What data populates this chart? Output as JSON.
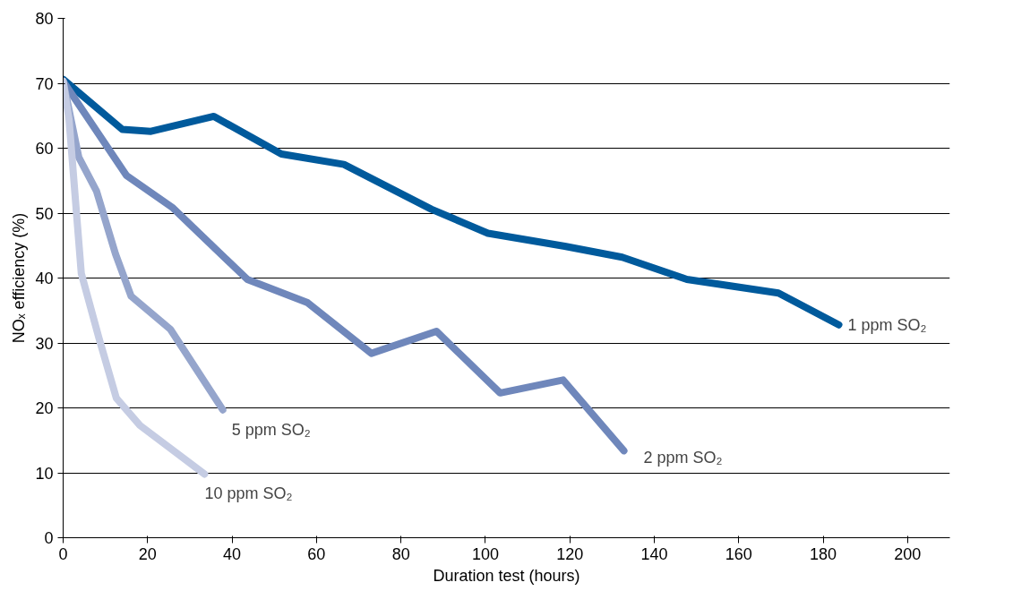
{
  "chart_data": {
    "type": "line",
    "xlabel": "Duration test (hours)",
    "ylabel": "NOₓ efficiency (%)",
    "xlim": [
      0,
      210
    ],
    "xticks": [
      0,
      20,
      40,
      60,
      80,
      100,
      120,
      140,
      160,
      180,
      200
    ],
    "ylim": [
      0,
      80
    ],
    "yticks": [
      0,
      10,
      20,
      30,
      40,
      50,
      60,
      70,
      80
    ],
    "grid": "y",
    "marker": "none",
    "line_style": "solid",
    "series": [
      {
        "name": "1 ppm SO₂",
        "color": "#005a9c",
        "x": [
          0,
          14,
          20.8,
          35.7,
          51.7,
          66.5,
          87.2,
          100.6,
          118.8,
          132.4,
          147.7,
          169.4,
          183.7
        ],
        "values": [
          70.6,
          62.9,
          62.6,
          64.9,
          59.1,
          57.5,
          50.6,
          46.9,
          44.9,
          43.2,
          39.8,
          37.7,
          32.8
        ]
      },
      {
        "name": "2 ppm SO₂",
        "color": "#6f87bb",
        "x": [
          0,
          15,
          25.8,
          43.6,
          57.9,
          73,
          88.4,
          103.5,
          118.4,
          132.8
        ],
        "values": [
          70.3,
          55.8,
          50.9,
          39.8,
          36.2,
          28.4,
          31.8,
          22.3,
          24.3,
          13.4
        ]
      },
      {
        "name": "5 ppm SO₂",
        "color": "#95a5cc",
        "x": [
          0,
          3.7,
          7.9,
          12.4,
          16.1,
          25.4,
          37.8
        ],
        "values": [
          70.3,
          58.6,
          53.4,
          43.7,
          37.2,
          32.1,
          19.7
        ]
      },
      {
        "name": "10 ppm SO₂",
        "color": "#c5cce3",
        "x": [
          0,
          1.4,
          4.3,
          8.5,
          12.6,
          18.2,
          33.5
        ],
        "values": [
          70.3,
          64.4,
          40.7,
          30.7,
          21.5,
          17.3,
          9.8
        ]
      }
    ]
  }
}
